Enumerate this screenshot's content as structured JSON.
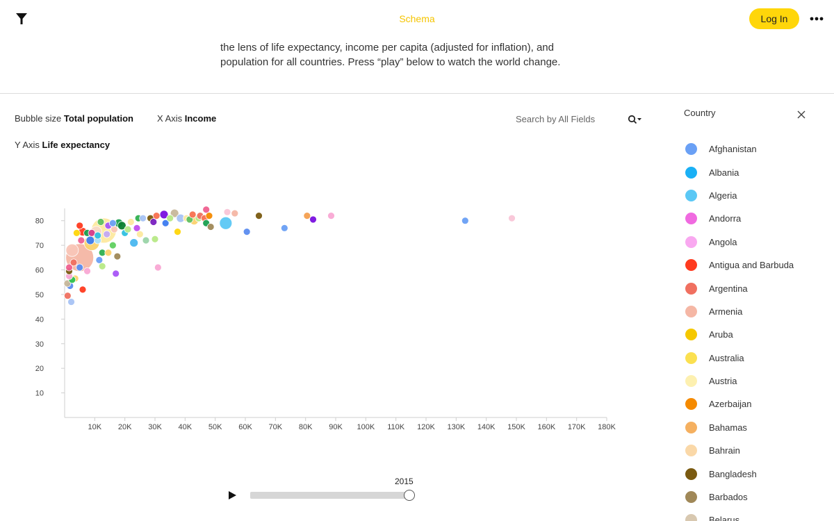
{
  "header": {
    "title": "Schema",
    "login_label": "Log In"
  },
  "intro": {
    "line1": "the lens of life expectancy, income per capita (adjusted for inflation), and",
    "line2": "population for all countries. Press “play” below to watch the world change."
  },
  "controls": {
    "bubble_label": "Bubble size",
    "bubble_value": "Total population",
    "x_label": "X Axis",
    "x_value": "Income",
    "y_label": "Y Axis",
    "y_value": "Life expectancy",
    "search_placeholder": "Search by All Fields"
  },
  "chart_data": {
    "type": "scatter",
    "xlim": [
      0,
      180000
    ],
    "ylim": [
      0,
      85
    ],
    "x_ticks": [
      10000,
      20000,
      30000,
      40000,
      50000,
      60000,
      70000,
      80000,
      90000,
      100000,
      110000,
      120000,
      130000,
      140000,
      150000,
      160000,
      170000,
      180000
    ],
    "x_tick_labels": [
      "10K",
      "20K",
      "30K",
      "40K",
      "50K",
      "60K",
      "70K",
      "80K",
      "90K",
      "100K",
      "110K",
      "120K",
      "130K",
      "140K",
      "150K",
      "160K",
      "170K",
      "180K"
    ],
    "y_ticks": [
      10,
      20,
      30,
      40,
      50,
      60,
      70,
      80
    ],
    "y_tick_labels": [
      "10",
      "20",
      "30",
      "40",
      "50",
      "60",
      "70",
      "80"
    ],
    "grid": false,
    "points": [
      {
        "x": 5000,
        "y": 65,
        "r": 20,
        "color": "#f5b7a5"
      },
      {
        "x": 13000,
        "y": 76,
        "r": 18,
        "color": "#fde9a0"
      },
      {
        "x": 9000,
        "y": 71,
        "r": 11,
        "color": "#fbd26e"
      },
      {
        "x": 2500,
        "y": 68,
        "r": 9,
        "color": "#f9c6b8"
      },
      {
        "x": 10500,
        "y": 75.5,
        "r": 8,
        "color": "#f7d9c7"
      },
      {
        "x": 53500,
        "y": 79,
        "r": 9,
        "color": "#5bc8f5"
      },
      {
        "x": 23000,
        "y": 71,
        "r": 6,
        "color": "#4ab8f0"
      },
      {
        "x": 17500,
        "y": 65.5,
        "r": 5,
        "color": "#a08858"
      },
      {
        "x": 17000,
        "y": 58.5,
        "r": 5,
        "color": "#a855f7"
      },
      {
        "x": 31000,
        "y": 61,
        "r": 5,
        "color": "#f9a8d4"
      },
      {
        "x": 6000,
        "y": 52,
        "r": 5,
        "color": "#ff3b1f"
      },
      {
        "x": 1000,
        "y": 49.5,
        "r": 5,
        "color": "#f07060"
      },
      {
        "x": 2200,
        "y": 47,
        "r": 5,
        "color": "#a8c4f5"
      },
      {
        "x": 1800,
        "y": 53.5,
        "r": 5,
        "color": "#5b8df0"
      },
      {
        "x": 900,
        "y": 54.5,
        "r": 5,
        "color": "#c8b89a"
      },
      {
        "x": 3500,
        "y": 56.5,
        "r": 5,
        "color": "#fbd26e"
      },
      {
        "x": 2500,
        "y": 56,
        "r": 5,
        "color": "#2fc050"
      },
      {
        "x": 1500,
        "y": 57.5,
        "r": 5,
        "color": "#f9a8d4"
      },
      {
        "x": 1500,
        "y": 59.5,
        "r": 5,
        "color": "#7a5a10"
      },
      {
        "x": 1500,
        "y": 61,
        "r": 5,
        "color": "#f06090"
      },
      {
        "x": 7500,
        "y": 59.5,
        "r": 5,
        "color": "#f9a8d4"
      },
      {
        "x": 12500,
        "y": 61.5,
        "r": 5,
        "color": "#b8e986"
      },
      {
        "x": 3000,
        "y": 63,
        "r": 5,
        "color": "#f07060"
      },
      {
        "x": 5000,
        "y": 61,
        "r": 5,
        "color": "#5b8df0"
      },
      {
        "x": 11500,
        "y": 64,
        "r": 5,
        "color": "#6aa0f5"
      },
      {
        "x": 12500,
        "y": 67,
        "r": 5,
        "color": "#30b050"
      },
      {
        "x": 14500,
        "y": 67,
        "r": 5,
        "color": "#fbd26e"
      },
      {
        "x": 16000,
        "y": 70,
        "r": 5,
        "color": "#60d060"
      },
      {
        "x": 5500,
        "y": 72,
        "r": 5,
        "color": "#f06090"
      },
      {
        "x": 8500,
        "y": 72,
        "r": 6,
        "color": "#3d7cf0"
      },
      {
        "x": 11000,
        "y": 72,
        "r": 5,
        "color": "#a8e0ff"
      },
      {
        "x": 4000,
        "y": 75,
        "r": 5,
        "color": "#ffd60a"
      },
      {
        "x": 6000,
        "y": 75.5,
        "r": 6,
        "color": "#ff3b1f"
      },
      {
        "x": 7500,
        "y": 75,
        "r": 5,
        "color": "#1aa050"
      },
      {
        "x": 9000,
        "y": 75,
        "r": 5,
        "color": "#d63c8a"
      },
      {
        "x": 5000,
        "y": 78,
        "r": 5,
        "color": "#ff3b1f"
      },
      {
        "x": 11000,
        "y": 74,
        "r": 5,
        "color": "#30c0e0"
      },
      {
        "x": 14000,
        "y": 74.5,
        "r": 5,
        "color": "#c4a8f5"
      },
      {
        "x": 14500,
        "y": 78,
        "r": 5,
        "color": "#a855f7"
      },
      {
        "x": 16500,
        "y": 76.5,
        "r": 5,
        "color": "#f9c6b8"
      },
      {
        "x": 12000,
        "y": 79.5,
        "r": 5,
        "color": "#60c060"
      },
      {
        "x": 16000,
        "y": 79,
        "r": 5,
        "color": "#6aa0f5"
      },
      {
        "x": 18000,
        "y": 79,
        "r": 6,
        "color": "#1aa050"
      },
      {
        "x": 19000,
        "y": 78,
        "r": 6,
        "color": "#0a8030"
      },
      {
        "x": 20000,
        "y": 75,
        "r": 5,
        "color": "#30c0e0"
      },
      {
        "x": 21000,
        "y": 76.5,
        "r": 5,
        "color": "#b8e986"
      },
      {
        "x": 22000,
        "y": 79.5,
        "r": 5,
        "color": "#fde9a0"
      },
      {
        "x": 24000,
        "y": 77,
        "r": 5,
        "color": "#c050f0"
      },
      {
        "x": 25000,
        "y": 74.5,
        "r": 5,
        "color": "#fde9a0"
      },
      {
        "x": 24500,
        "y": 81,
        "r": 5,
        "color": "#30b050"
      },
      {
        "x": 26000,
        "y": 81,
        "r": 5,
        "color": "#a8c4f5"
      },
      {
        "x": 27000,
        "y": 72,
        "r": 5,
        "color": "#9ad4a8"
      },
      {
        "x": 30000,
        "y": 72.5,
        "r": 5,
        "color": "#b8e986"
      },
      {
        "x": 28500,
        "y": 81,
        "r": 5,
        "color": "#7a5a10"
      },
      {
        "x": 29500,
        "y": 79.5,
        "r": 5,
        "color": "#7a20c0"
      },
      {
        "x": 30500,
        "y": 82,
        "r": 5,
        "color": "#f87050"
      },
      {
        "x": 33000,
        "y": 82.5,
        "r": 6,
        "color": "#7a10e0"
      },
      {
        "x": 33500,
        "y": 79,
        "r": 5,
        "color": "#3d7cf0"
      },
      {
        "x": 35000,
        "y": 81,
        "r": 5,
        "color": "#b8e986"
      },
      {
        "x": 36500,
        "y": 83,
        "r": 6,
        "color": "#c8b89a"
      },
      {
        "x": 37500,
        "y": 75.5,
        "r": 5,
        "color": "#ffd60a"
      },
      {
        "x": 38500,
        "y": 81,
        "r": 6,
        "color": "#a8c4f5"
      },
      {
        "x": 40500,
        "y": 81,
        "r": 5,
        "color": "#fde9a0"
      },
      {
        "x": 41500,
        "y": 80.5,
        "r": 5,
        "color": "#60c060"
      },
      {
        "x": 43000,
        "y": 80,
        "r": 6,
        "color": "#fbd26e"
      },
      {
        "x": 42500,
        "y": 82.5,
        "r": 5,
        "color": "#f87050"
      },
      {
        "x": 44500,
        "y": 81,
        "r": 5,
        "color": "#b8e986"
      },
      {
        "x": 45000,
        "y": 82,
        "r": 5,
        "color": "#f07060"
      },
      {
        "x": 46500,
        "y": 81,
        "r": 5,
        "color": "#f87050"
      },
      {
        "x": 47000,
        "y": 84.5,
        "r": 5,
        "color": "#f06090"
      },
      {
        "x": 47000,
        "y": 79,
        "r": 5,
        "color": "#1aa050"
      },
      {
        "x": 48000,
        "y": 82,
        "r": 5,
        "color": "#f58a00"
      },
      {
        "x": 48500,
        "y": 77.5,
        "r": 5,
        "color": "#a08858"
      },
      {
        "x": 54000,
        "y": 83.5,
        "r": 5,
        "color": "#f9c6d8"
      },
      {
        "x": 56500,
        "y": 83,
        "r": 5,
        "color": "#f5b7a5"
      },
      {
        "x": 60500,
        "y": 75.5,
        "r": 5,
        "color": "#5b8df0"
      },
      {
        "x": 64500,
        "y": 82,
        "r": 5,
        "color": "#7a5a10"
      },
      {
        "x": 73000,
        "y": 77,
        "r": 5,
        "color": "#6aa0f5"
      },
      {
        "x": 80500,
        "y": 82,
        "r": 5,
        "color": "#f5a050"
      },
      {
        "x": 82500,
        "y": 80.5,
        "r": 5,
        "color": "#7a10e0"
      },
      {
        "x": 88500,
        "y": 82,
        "r": 5,
        "color": "#f9a8d4"
      },
      {
        "x": 133000,
        "y": 80,
        "r": 5,
        "color": "#6aa0f5"
      },
      {
        "x": 148500,
        "y": 81,
        "r": 5,
        "color": "#f9c6d8"
      }
    ]
  },
  "timeline": {
    "year": "2015",
    "progress": 1.0
  },
  "panel": {
    "title": "Country",
    "countries": [
      {
        "name": "Afghanistan",
        "color": "#6aa0f5"
      },
      {
        "name": "Albania",
        "color": "#1ab0f5"
      },
      {
        "name": "Algeria",
        "color": "#5bc8f5"
      },
      {
        "name": "Andorra",
        "color": "#f06ae0"
      },
      {
        "name": "Angola",
        "color": "#f9a8f0"
      },
      {
        "name": "Antigua and Barbuda",
        "color": "#ff3b1f"
      },
      {
        "name": "Argentina",
        "color": "#f07060"
      },
      {
        "name": "Armenia",
        "color": "#f5b7a5"
      },
      {
        "name": "Aruba",
        "color": "#f5c800"
      },
      {
        "name": "Australia",
        "color": "#fbe050"
      },
      {
        "name": "Austria",
        "color": "#fdf0b0"
      },
      {
        "name": "Azerbaijan",
        "color": "#f58a00"
      },
      {
        "name": "Bahamas",
        "color": "#f5b060"
      },
      {
        "name": "Bahrain",
        "color": "#fad8a8"
      },
      {
        "name": "Bangladesh",
        "color": "#7a5a10"
      },
      {
        "name": "Barbados",
        "color": "#a08858"
      },
      {
        "name": "Belarus",
        "color": "#d8c8b0"
      }
    ]
  }
}
